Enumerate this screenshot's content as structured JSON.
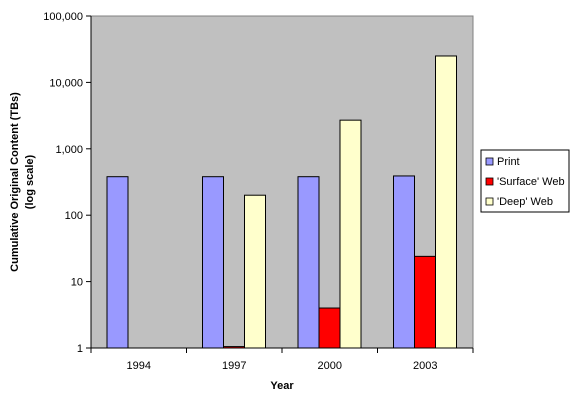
{
  "chart_data": {
    "type": "bar",
    "title": "",
    "xlabel": "Year",
    "ylabel_line1": "Cumulative Original Content (TBs)",
    "ylabel_line2": "(log scale)",
    "y_scale": "log",
    "ylim": [
      1,
      100000
    ],
    "y_ticks": [
      1,
      10,
      100,
      1000,
      10000,
      100000
    ],
    "y_tick_labels": [
      "1",
      "10",
      "100",
      "1,000",
      "10,000",
      "100,000"
    ],
    "grid": false,
    "legend_position": "right",
    "categories": [
      "1994",
      "1997",
      "2000",
      "2003"
    ],
    "series": [
      {
        "name": "Print",
        "color": "#9999ff",
        "values": [
          380,
          380,
          380,
          390
        ]
      },
      {
        "name": "'Surface' Web",
        "color": "#ff0000",
        "values": [
          null,
          1.05,
          4,
          24
        ]
      },
      {
        "name": "'Deep' Web",
        "color": "#ffffcc",
        "values": [
          null,
          200,
          2700,
          25000
        ]
      }
    ],
    "plot_background": "#c0c0c0"
  }
}
